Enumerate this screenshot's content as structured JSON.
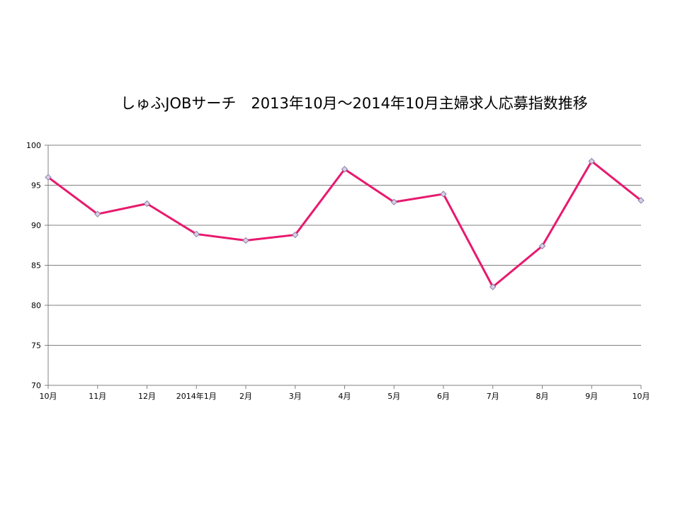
{
  "chart_data": {
    "type": "line",
    "title": "しゅふJOBサーチ　2013年10月～2014年10月主婦求人応募指数推移",
    "xlabel": "",
    "ylabel": "",
    "categories": [
      "10月",
      "11月",
      "12月",
      "2014年1月",
      "2月",
      "3月",
      "4月",
      "5月",
      "6月",
      "7月",
      "8月",
      "9月",
      "10月"
    ],
    "series": [
      {
        "values": [
          96.0,
          91.4,
          92.7,
          88.9,
          88.1,
          88.8,
          97.0,
          92.9,
          93.9,
          82.3,
          87.4,
          98.0,
          93.1
        ]
      }
    ],
    "ylim": [
      70,
      100
    ],
    "yticks": [
      100,
      95,
      90,
      85,
      80,
      75,
      70
    ],
    "grid": true,
    "legend": "none",
    "colors": {
      "line": "#e8196e",
      "marker_fill": "#d9cfe6",
      "marker_stroke": "#8a7fa8",
      "grid": "#808080",
      "axis": "#808080"
    }
  }
}
